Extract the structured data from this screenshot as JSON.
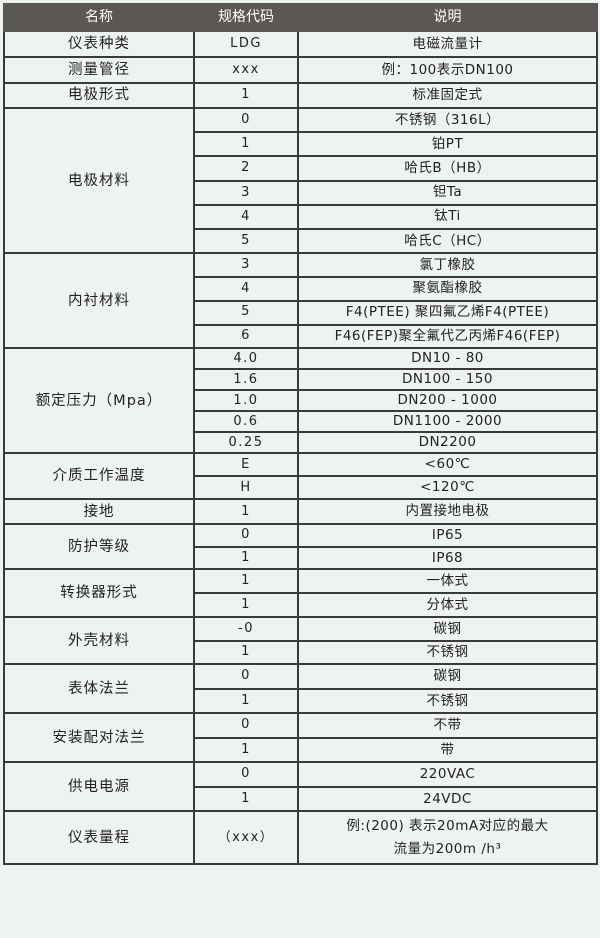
{
  "header": {
    "name": "名称",
    "code": "规格代码",
    "desc": "说明"
  },
  "groups": [
    {
      "name": "仪表种类",
      "rows": [
        {
          "code": "LDG",
          "desc": "电磁流量计"
        }
      ]
    },
    {
      "name": "测量管径",
      "rows": [
        {
          "code": "xxx",
          "desc": "例：100表示DN100"
        }
      ]
    },
    {
      "name": "电极形式",
      "rows": [
        {
          "code": "1",
          "desc": "标准固定式"
        }
      ]
    },
    {
      "name": "电极材料",
      "rows": [
        {
          "code": "0",
          "desc": "不锈钢（316L）"
        },
        {
          "code": "1",
          "desc": "铂PT"
        },
        {
          "code": "2",
          "desc": "哈氏B（HB）"
        },
        {
          "code": "3",
          "desc": "钽Ta"
        },
        {
          "code": "4",
          "desc": "钛Ti"
        },
        {
          "code": "5",
          "desc": "哈氏C（HC）"
        }
      ]
    },
    {
      "name": "内衬材料",
      "rows": [
        {
          "code": "3",
          "desc": "氯丁橡胶"
        },
        {
          "code": "4",
          "desc": "聚氨酯橡胶"
        },
        {
          "code": "5",
          "desc": "F4(PTEE) 聚四氟乙烯F4(PTEE)"
        },
        {
          "code": "6",
          "desc": "F46(FEP)聚全氟代乙丙烯F46(FEP)"
        }
      ]
    },
    {
      "name": "额定压力（Mpa）",
      "rows": [
        {
          "code": "4.0",
          "desc": "DN10 - 80"
        },
        {
          "code": "1.6",
          "desc": "DN100 - 150"
        },
        {
          "code": "1.0",
          "desc": "DN200 - 1000"
        },
        {
          "code": "0.6",
          "desc": "DN1100 - 2000"
        },
        {
          "code": "0.25",
          "desc": "DN2200"
        }
      ]
    },
    {
      "name": "介质工作温度",
      "rows": [
        {
          "code": "E",
          "desc": "<60℃"
        },
        {
          "code": "H",
          "desc": "<120℃"
        }
      ]
    },
    {
      "name": "接地",
      "rows": [
        {
          "code": "1",
          "desc": "内置接地电极"
        }
      ]
    },
    {
      "name": "防护等级",
      "rows": [
        {
          "code": "0",
          "desc": "IP65"
        },
        {
          "code": "1",
          "desc": "IP68"
        }
      ]
    },
    {
      "name": "转换器形式",
      "rows": [
        {
          "code": "1",
          "desc": "一体式"
        },
        {
          "code": "1",
          "desc": "分体式"
        }
      ]
    },
    {
      "name": "外壳材料",
      "rows": [
        {
          "code": "-0",
          "desc": "碳钢"
        },
        {
          "code": "1",
          "desc": "不锈钢"
        }
      ]
    },
    {
      "name": "表体法兰",
      "rows": [
        {
          "code": "0",
          "desc": "碳钢"
        },
        {
          "code": "1",
          "desc": "不锈钢"
        }
      ]
    },
    {
      "name": "安装配对法兰",
      "rows": [
        {
          "code": "0",
          "desc": "不带"
        },
        {
          "code": "1",
          "desc": "带"
        }
      ]
    },
    {
      "name": "供电电源",
      "rows": [
        {
          "code": "0",
          "desc": "220VAC"
        },
        {
          "code": "1",
          "desc": "24VDC"
        }
      ]
    },
    {
      "name": "仪表量程",
      "rows": [
        {
          "code": "（xxx）",
          "desc": "例:(200) 表示20mA对应的最大",
          "desc2": "流量为200m /h³"
        }
      ]
    }
  ]
}
